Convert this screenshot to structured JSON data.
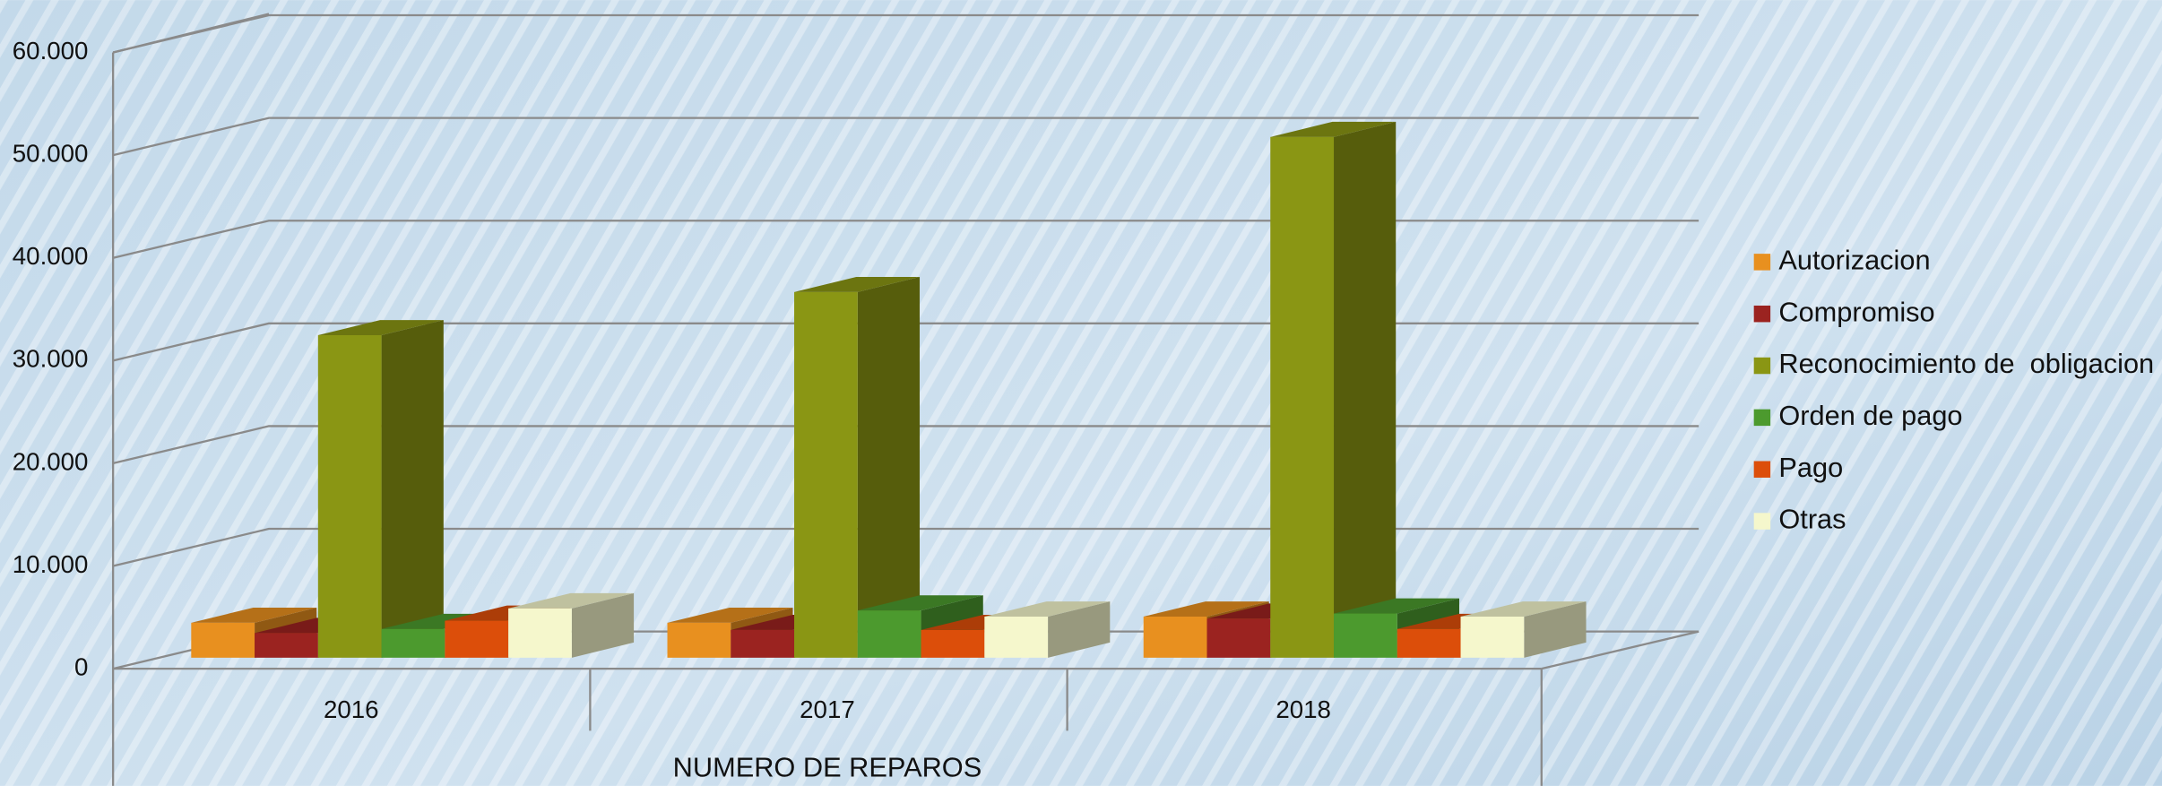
{
  "chart_data": {
    "type": "bar3d",
    "x_label": "NUMERO DE REPAROS",
    "categories": [
      "2016",
      "2017",
      "2018"
    ],
    "series": [
      {
        "name": "Autorizacion",
        "color": "#e8901f",
        "values": [
          3400,
          3400,
          4000
        ]
      },
      {
        "name": "Compromiso",
        "color": "#9b2320",
        "values": [
          2400,
          2700,
          3800
        ]
      },
      {
        "name": "Reconocimiento de  obligacion",
        "color": "#8a9614",
        "values": [
          31400,
          35600,
          50700
        ]
      },
      {
        "name": "Orden de pago",
        "color": "#4c9a2e",
        "values": [
          2800,
          4600,
          4300
        ]
      },
      {
        "name": "Pago",
        "color": "#dc4e0a",
        "values": [
          3600,
          2700,
          2800
        ]
      },
      {
        "name": "Otras",
        "color": "#f5f7cc",
        "values": [
          4800,
          4000,
          4000
        ]
      }
    ],
    "ylim": [
      0,
      60000
    ],
    "yticks": [
      0,
      {
        "value": 10000,
        "label": "10.000"
      },
      {
        "value": 20000,
        "label": "20.000"
      },
      {
        "value": 30000,
        "label": "30.000"
      },
      {
        "value": 40000,
        "label": "40.000"
      },
      {
        "value": 50000,
        "label": "50.000"
      },
      {
        "value": 60000,
        "label": "60.000"
      }
    ],
    "grid": true,
    "legend": "right"
  }
}
